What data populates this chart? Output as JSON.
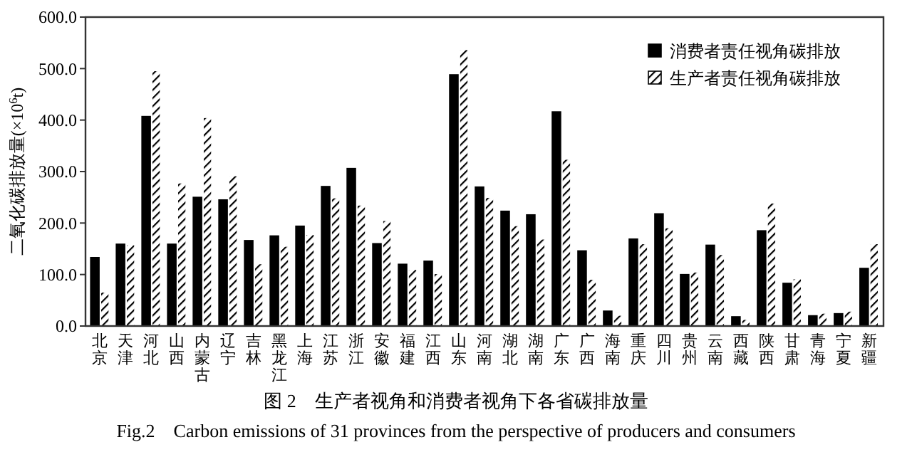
{
  "chart_data": {
    "type": "bar",
    "title": "图 2　生产者视角和消费者视角下各省碳排放量",
    "subtitle": "Fig.2　Carbon emissions of 31 provinces from the perspective of producers and consumers",
    "ylabel": "二氧化碳排放量(×10$^{6}$t)",
    "categories": [
      "北京",
      "天津",
      "河北",
      "山西",
      "内蒙古",
      "辽宁",
      "吉林",
      "黑龙江",
      "上海",
      "江苏",
      "浙江",
      "安徽",
      "福建",
      "江西",
      "山东",
      "河南",
      "湖北",
      "湖南",
      "广东",
      "广西",
      "海南",
      "重庆",
      "四川",
      "贵州",
      "云南",
      "西藏",
      "陕西",
      "甘肃",
      "青海",
      "宁夏",
      "新疆"
    ],
    "series": [
      {
        "name": "消费者责任视角碳排放",
        "color": "#000000",
        "values": [
          133,
          159,
          407,
          159,
          250,
          245,
          166,
          175,
          194,
          271,
          306,
          160,
          120,
          126,
          488,
          270,
          223,
          216,
          416,
          146,
          29,
          169,
          218,
          100,
          157,
          18,
          185,
          83,
          20,
          24,
          112
        ]
      },
      {
        "name": "生产者责任视角碳排放",
        "color": "#ffffff",
        "values": [
          66,
          158,
          496,
          278,
          405,
          292,
          121,
          155,
          178,
          249,
          235,
          205,
          110,
          102,
          537,
          250,
          195,
          169,
          324,
          91,
          21,
          160,
          191,
          105,
          139,
          13,
          239,
          92,
          25,
          29,
          160
        ]
      }
    ],
    "ylim": [
      0,
      600
    ],
    "yticks": [
      {
        "value": 0,
        "label": "0.0"
      },
      {
        "value": 100,
        "label": "100.0"
      },
      {
        "value": 200,
        "label": "200.0"
      },
      {
        "value": 300,
        "label": "300.0"
      },
      {
        "value": 400,
        "label": "400.0"
      },
      {
        "value": 500,
        "label": "500.0"
      },
      {
        "value": 600,
        "label": "600.0"
      }
    ],
    "grid": false,
    "legend": "top right"
  }
}
